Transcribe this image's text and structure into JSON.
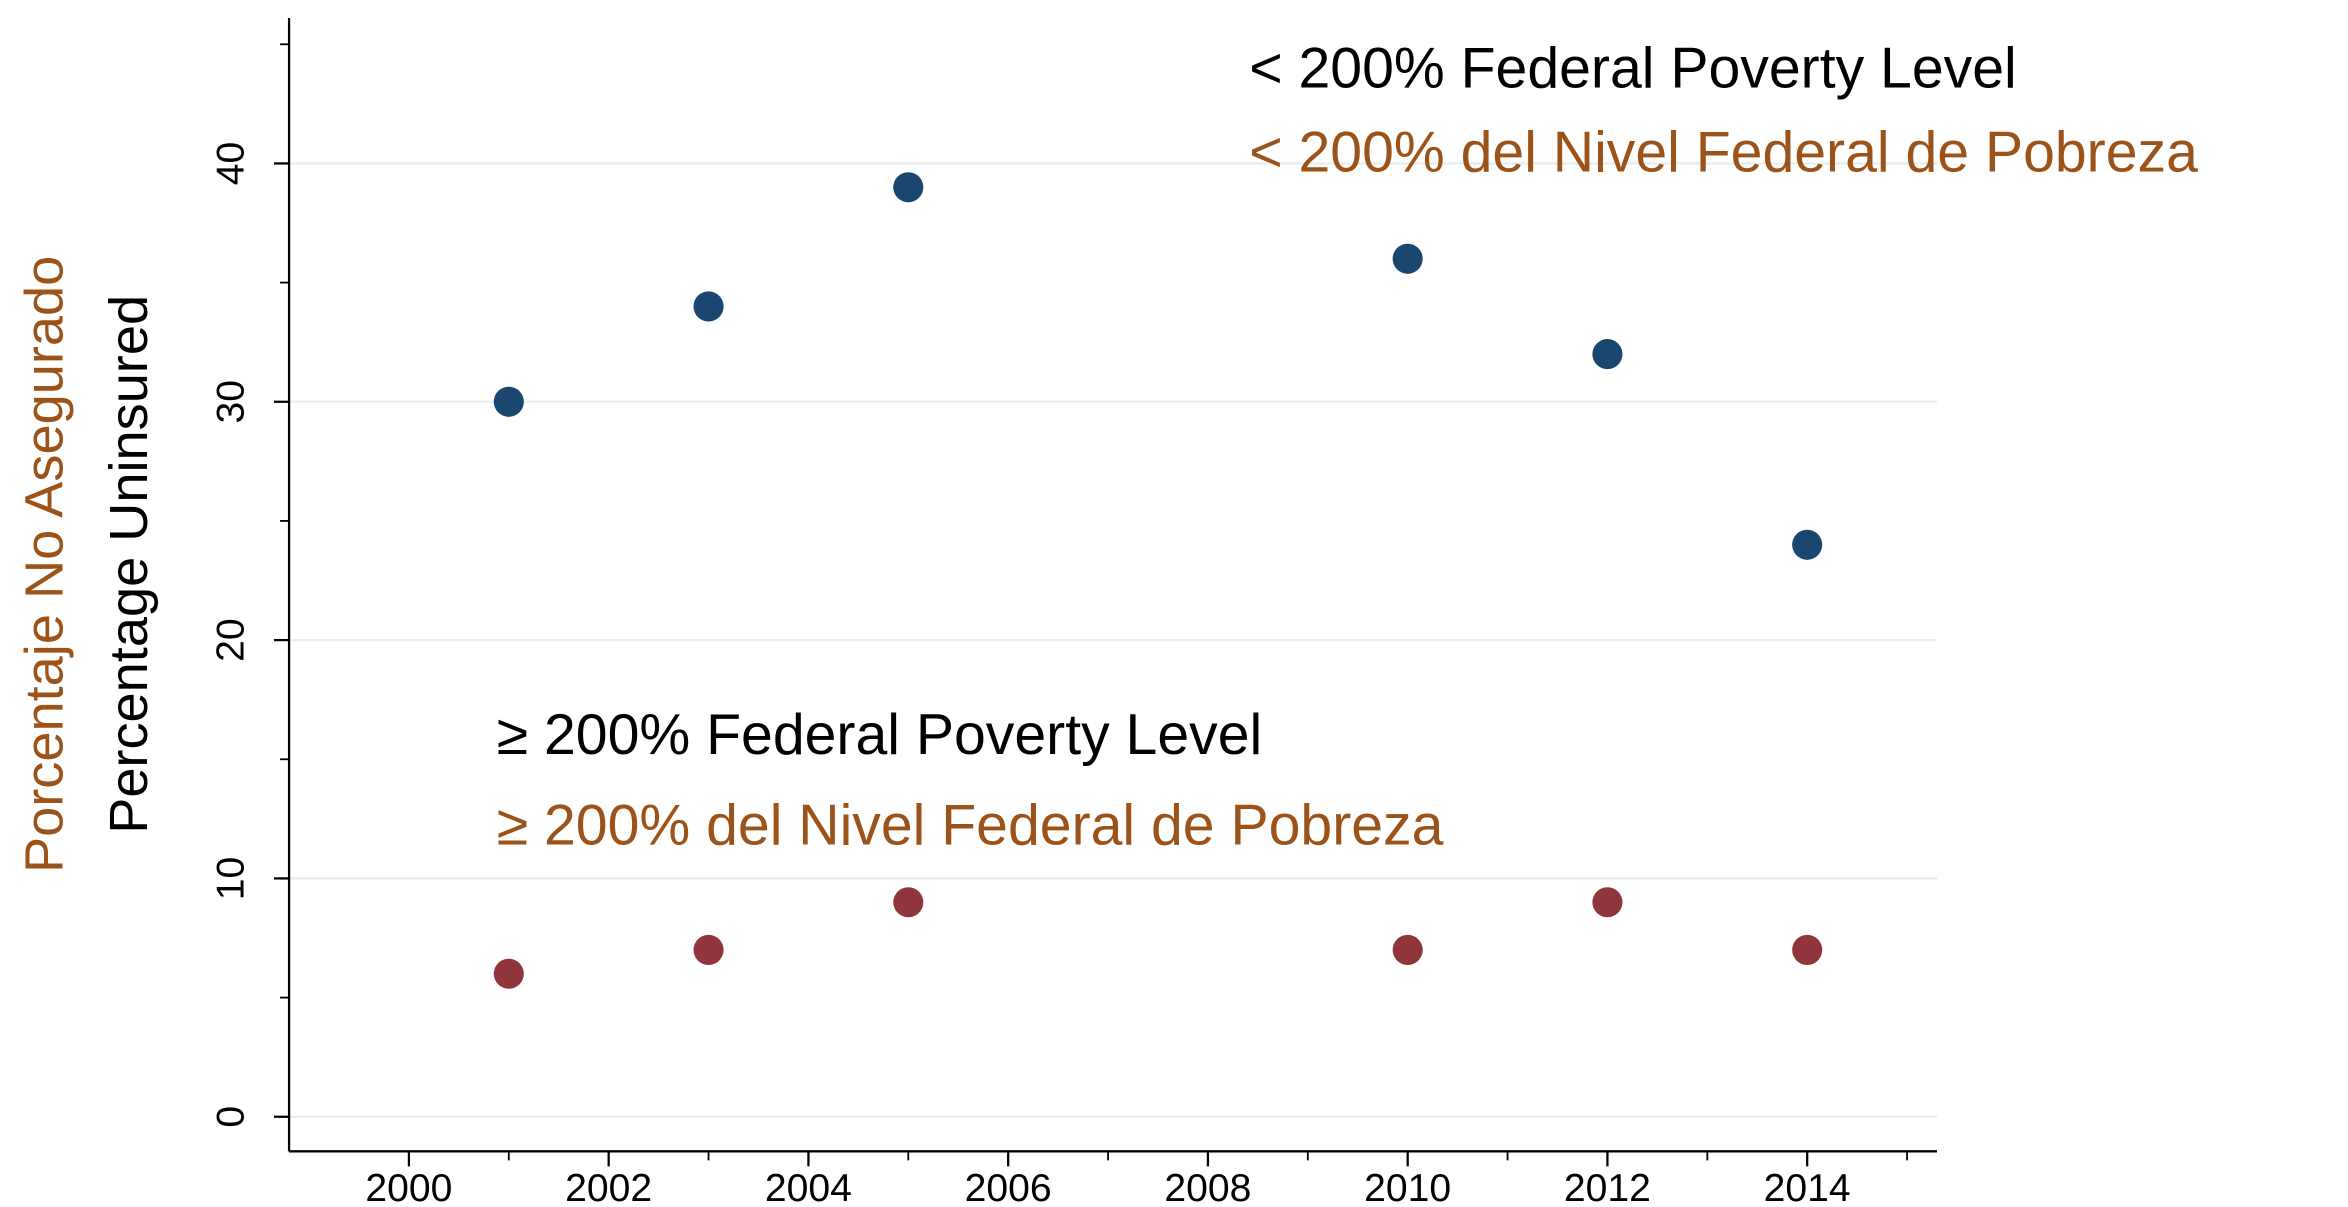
{
  "chart_data": {
    "type": "scatter",
    "y_label": "Percentage Uninsured",
    "y_label_es": "Porcentaje No Asegurado",
    "y_label_es_color": "#9c5319",
    "x": [
      2001,
      2003,
      2005,
      2010,
      2012,
      2014
    ],
    "series": [
      {
        "color": "#1a476f",
        "values": [
          30,
          34,
          39,
          36,
          32,
          24
        ]
      },
      {
        "color": "#90353b",
        "values": [
          6,
          7,
          9,
          7,
          9,
          7
        ]
      }
    ],
    "annotations": [
      {
        "text": "< 200% Federal Poverty Level",
        "color": "#000000"
      },
      {
        "text": "< 200% del Nivel Federal de Pobreza",
        "color": "#9c5319"
      },
      {
        "text": "≥ 200% Federal Poverty Level",
        "color": "#000000"
      },
      {
        "text": "≥ 200% del Nivel Federal de Pobreza",
        "color": "#9c5319"
      }
    ],
    "xlim": [
      1998.8,
      2015.3
    ],
    "ylim": [
      -1.45,
      46.1
    ],
    "xticks": [
      2000,
      2002,
      2004,
      2006,
      2008,
      2010,
      2012,
      2014
    ],
    "xminorticks": [
      2001,
      2003,
      2005,
      2007,
      2009,
      2011,
      2013,
      2015
    ],
    "yticks": [
      0,
      10,
      20,
      30,
      40
    ],
    "yminorticks": [
      5,
      15,
      25,
      35,
      45
    ],
    "grid": true
  }
}
